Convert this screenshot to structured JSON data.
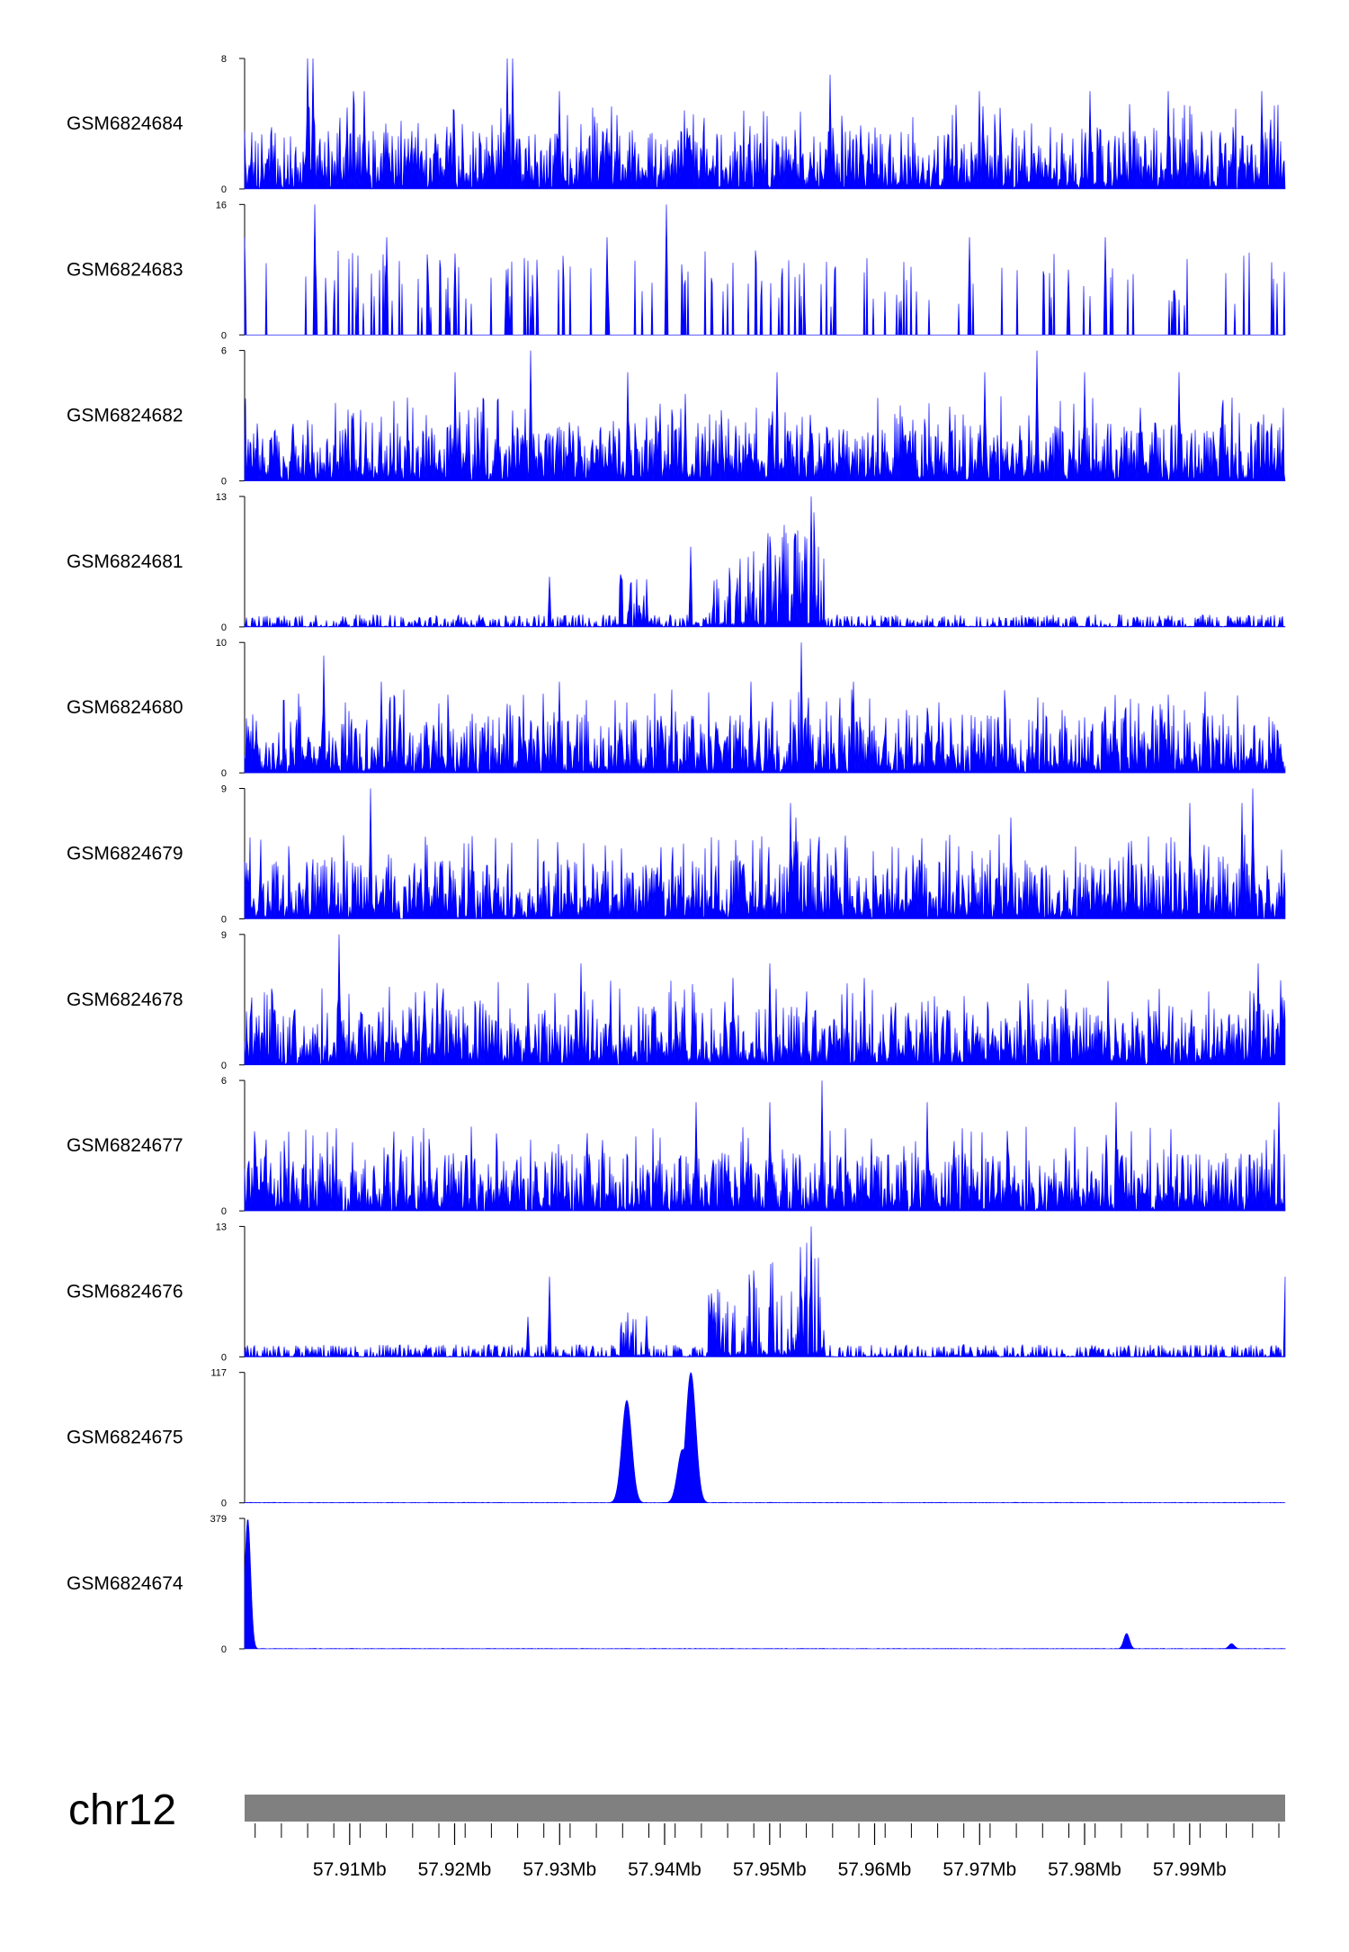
{
  "chart_data": {
    "type": "area",
    "title": "",
    "chromosome": "chr12",
    "xrange_mb": [
      57.9,
      57.9991
    ],
    "xticks": [
      57.91,
      57.92,
      57.93,
      57.94,
      57.95,
      57.96,
      57.97,
      57.98,
      57.99
    ],
    "xtick_labels": [
      "57.91Mb",
      "57.92Mb",
      "57.93Mb",
      "57.94Mb",
      "57.95Mb",
      "57.96Mb",
      "57.97Mb",
      "57.98Mb",
      "57.99Mb"
    ],
    "color": "#0000ff",
    "tracks": [
      {
        "name": "GSM6824684",
        "ylim": [
          0,
          8
        ],
        "peaks": [
          [
            57.906,
            8
          ],
          [
            57.9065,
            8
          ],
          [
            57.9104,
            6
          ],
          [
            57.9114,
            6
          ],
          [
            57.925,
            8
          ],
          [
            57.9255,
            8
          ],
          [
            57.9558,
            7
          ],
          [
            57.93,
            6
          ],
          [
            57.97,
            6
          ],
          [
            57.9805,
            6
          ],
          [
            57.988,
            6
          ],
          [
            57.9969,
            6
          ]
        ]
      },
      {
        "name": "GSM6824683",
        "ylim": [
          0,
          16
        ],
        "peaks": [
          [
            57.9,
            12
          ],
          [
            57.9067,
            16
          ],
          [
            57.9135,
            12
          ],
          [
            57.92,
            10
          ],
          [
            57.9249,
            8
          ],
          [
            57.9345,
            12
          ],
          [
            57.9402,
            16
          ],
          [
            57.9562,
            8
          ],
          [
            57.969,
            12
          ],
          [
            57.9785,
            8
          ],
          [
            57.982,
            12
          ]
        ]
      },
      {
        "name": "GSM6824682",
        "ylim": [
          0,
          6
        ],
        "peaks": [
          [
            57.9272,
            6
          ],
          [
            57.92,
            5
          ],
          [
            57.9365,
            5
          ],
          [
            57.942,
            4
          ],
          [
            57.9507,
            5
          ],
          [
            57.9755,
            6
          ],
          [
            57.989,
            5
          ],
          [
            57.9705,
            5
          ],
          [
            57.98,
            5
          ]
        ]
      },
      {
        "name": "GSM6824681",
        "ylim": [
          0,
          13
        ],
        "peaks": [
          [
            57.929,
            5
          ],
          [
            57.9425,
            8
          ],
          [
            57.951,
            7
          ],
          [
            57.9534,
            9
          ],
          [
            57.954,
            13
          ]
        ]
      },
      {
        "name": "GSM6824680",
        "ylim": [
          0,
          10
        ],
        "peaks": [
          [
            57.9075,
            9
          ],
          [
            57.913,
            7
          ],
          [
            57.93,
            7
          ],
          [
            57.9482,
            7
          ],
          [
            57.953,
            10
          ],
          [
            57.958,
            7
          ],
          [
            57.965,
            5
          ],
          [
            57.9725,
            5
          ]
        ]
      },
      {
        "name": "GSM6824679",
        "ylim": [
          0,
          9
        ],
        "peaks": [
          [
            57.912,
            9
          ],
          [
            57.952,
            8
          ],
          [
            57.9525,
            7
          ],
          [
            57.973,
            7
          ],
          [
            57.99,
            8
          ],
          [
            57.995,
            8
          ],
          [
            57.996,
            9
          ]
        ]
      },
      {
        "name": "GSM6824678",
        "ylim": [
          0,
          9
        ],
        "peaks": [
          [
            57.909,
            9
          ],
          [
            57.932,
            7
          ],
          [
            57.9465,
            6
          ],
          [
            57.95,
            7
          ],
          [
            57.959,
            6
          ],
          [
            57.9965,
            7
          ]
        ]
      },
      {
        "name": "GSM6824677",
        "ylim": [
          0,
          6
        ],
        "peaks": [
          [
            57.943,
            5
          ],
          [
            57.95,
            5
          ],
          [
            57.955,
            6
          ],
          [
            57.965,
            5
          ],
          [
            57.983,
            5
          ],
          [
            57.9985,
            5
          ]
        ]
      },
      {
        "name": "GSM6824676",
        "ylim": [
          0,
          13
        ],
        "peaks": [
          [
            57.929,
            8
          ],
          [
            57.927,
            4
          ],
          [
            57.9445,
            5
          ],
          [
            57.95,
            5
          ],
          [
            57.954,
            13
          ],
          [
            57.9534,
            8
          ],
          [
            57.9991,
            8
          ]
        ]
      },
      {
        "name": "GSM6824675",
        "ylim": [
          0,
          117
        ],
        "peaks": [
          [
            57.9364,
            92
          ],
          [
            57.9425,
            117
          ],
          [
            57.9417,
            48
          ]
        ]
      },
      {
        "name": "GSM6824674",
        "ylim": [
          0,
          379
        ],
        "peaks": [
          [
            57.9003,
            379
          ],
          [
            57.984,
            45
          ],
          [
            57.994,
            15
          ]
        ]
      }
    ]
  }
}
